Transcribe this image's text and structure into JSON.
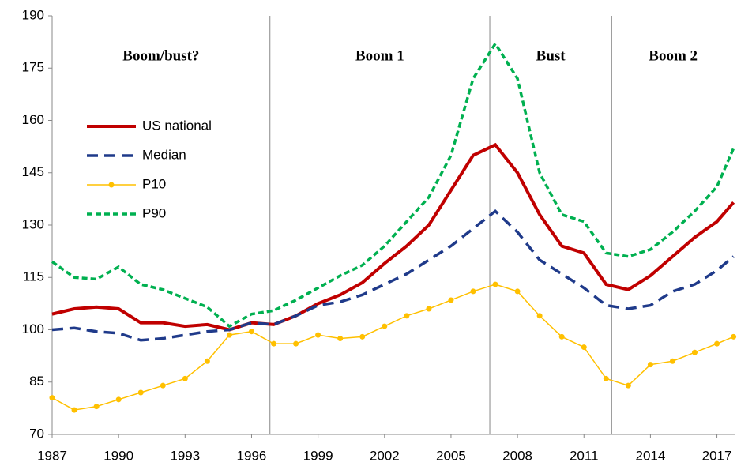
{
  "chart_data": {
    "type": "line",
    "x": [
      1987,
      1988,
      1989,
      1990,
      1991,
      1992,
      1993,
      1994,
      1995,
      1996,
      1997,
      1998,
      1999,
      2000,
      2001,
      2002,
      2003,
      2004,
      2005,
      2006,
      2007,
      2008,
      2009,
      2010,
      2011,
      2012,
      2013,
      2014,
      2015,
      2016,
      2017,
      2017.75
    ],
    "series": [
      {
        "name": "US national",
        "color": "#c00000",
        "dash": "solid",
        "values": [
          104.5,
          106,
          106.5,
          106,
          102,
          102,
          101,
          101.5,
          100,
          102,
          101.5,
          104,
          107.5,
          110,
          113.5,
          119,
          124,
          130,
          140,
          150,
          153,
          145,
          133,
          124,
          122,
          113,
          111.5,
          115.5,
          121,
          126.5,
          131,
          136.5
        ]
      },
      {
        "name": "Median",
        "color": "#1f3a8a",
        "dash": "dashed",
        "values": [
          100,
          100.5,
          99.5,
          99,
          97,
          97.5,
          98.5,
          99.5,
          100,
          102,
          101.5,
          104,
          107,
          108,
          110,
          113,
          116,
          120,
          124,
          129,
          134,
          128,
          120,
          116,
          112,
          107,
          106,
          107,
          111,
          113,
          117,
          121
        ]
      },
      {
        "name": "P10",
        "color": "#ffc000",
        "dash": "solid",
        "marker": true,
        "values": [
          80.5,
          77,
          78,
          80,
          82,
          84,
          86,
          91,
          98.5,
          99.5,
          96,
          96,
          98.5,
          97.5,
          98,
          101,
          104,
          106,
          108.5,
          111,
          113,
          111,
          104,
          98,
          95,
          86,
          84,
          90,
          91,
          93.5,
          96,
          98
        ]
      },
      {
        "name": "P90",
        "color": "#00b050",
        "dash": "dotted",
        "values": [
          119.5,
          115,
          114.5,
          118,
          113,
          111.5,
          109,
          106.5,
          101,
          104.5,
          105.5,
          108.5,
          112,
          115.5,
          118.5,
          124,
          131,
          138,
          150,
          172,
          182,
          172,
          145,
          133,
          131,
          122,
          121,
          123,
          128,
          134,
          141,
          152
        ]
      }
    ],
    "xlim": [
      1987,
      2017.8
    ],
    "xticks": [
      1987,
      1990,
      1993,
      1996,
      1999,
      2002,
      2005,
      2008,
      2011,
      2014,
      2017
    ],
    "ylim": [
      70,
      190
    ],
    "yticks": [
      70,
      85,
      100,
      115,
      130,
      145,
      160,
      175,
      190
    ],
    "dividers": [
      1996.83,
      2006.75,
      2012.25
    ],
    "regions": [
      "Boom/bust?",
      "Boom 1",
      "Bust",
      "Boom 2"
    ],
    "legend": "upper left",
    "grid": false
  }
}
